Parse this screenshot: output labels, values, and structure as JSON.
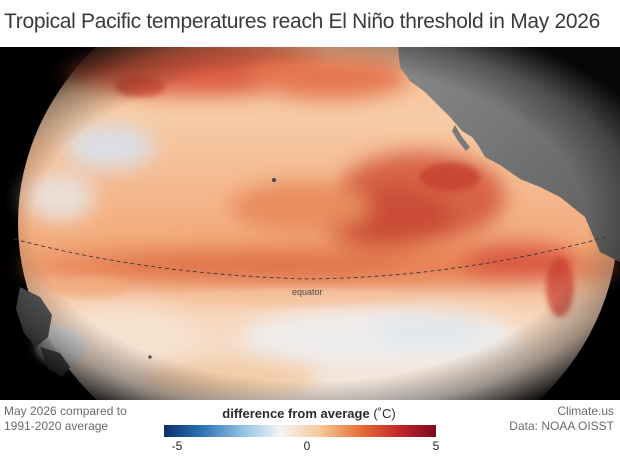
{
  "title": "Tropical Pacific temperatures reach El Niño threshold in May 2026",
  "map": {
    "equator_label": "equator"
  },
  "footer": {
    "left_line1": "May 2026 compared to",
    "left_line2": "1991-2020 average",
    "right_line1": "Climate.us",
    "right_line2": "Data: NOAA OISST"
  },
  "legend": {
    "title": "difference from average",
    "unit": "(˚C)",
    "ticks": [
      "-5",
      "0",
      "5"
    ],
    "min": -5,
    "max": 5,
    "colors": [
      "#0b2f6b",
      "#2f74b5",
      "#8fc1e3",
      "#f4f4f4",
      "#f7c89a",
      "#e6733a",
      "#c62a2a",
      "#7a0a1e"
    ]
  }
}
